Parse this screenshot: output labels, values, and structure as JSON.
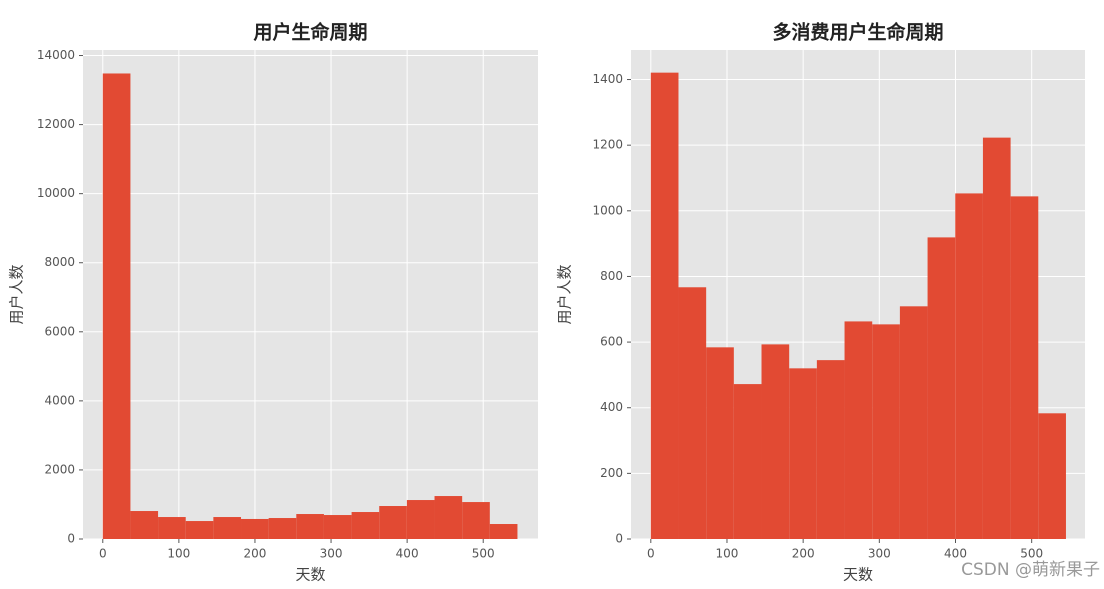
{
  "chart_data": [
    {
      "type": "histogram",
      "title": "用户生命周期",
      "x_label": "天数",
      "y_label": "用户人数",
      "bins": [
        0,
        36.33,
        72.67,
        109,
        145.33,
        181.67,
        218,
        254.33,
        290.67,
        327,
        363.33,
        399.67,
        436,
        472.33,
        508.67,
        545
      ],
      "values": [
        13480,
        810,
        636,
        520,
        636,
        580,
        607,
        723,
        694,
        781,
        955,
        1128,
        1244,
        1070,
        434
      ],
      "color": "#e24a33",
      "xlim": [
        -26,
        572
      ],
      "ylim": [
        0,
        14160
      ],
      "xticks": [
        0,
        100,
        200,
        300,
        400,
        500
      ],
      "yticks": [
        0,
        2000,
        4000,
        6000,
        8000,
        10000,
        12000,
        14000
      ],
      "grid": true
    },
    {
      "type": "histogram",
      "title": "多消费用户生命周期",
      "x_label": "天数",
      "y_label": "用户人数",
      "bins": [
        0,
        36.33,
        72.67,
        109,
        145.33,
        181.67,
        218,
        254.33,
        290.67,
        327,
        363.33,
        399.67,
        436,
        472.33,
        508.67,
        545
      ],
      "values": [
        1421,
        767,
        584,
        472,
        593,
        520,
        545,
        663,
        654,
        709,
        919,
        1053,
        1223,
        1044,
        383
      ],
      "color": "#e24a33",
      "xlim": [
        -26,
        570
      ],
      "ylim": [
        0,
        1490
      ],
      "xticks": [
        0,
        100,
        200,
        300,
        400,
        500
      ],
      "yticks": [
        0,
        200,
        400,
        600,
        800,
        1000,
        1200,
        1400
      ],
      "grid": true
    }
  ],
  "watermark": "CSDN @萌新果子"
}
